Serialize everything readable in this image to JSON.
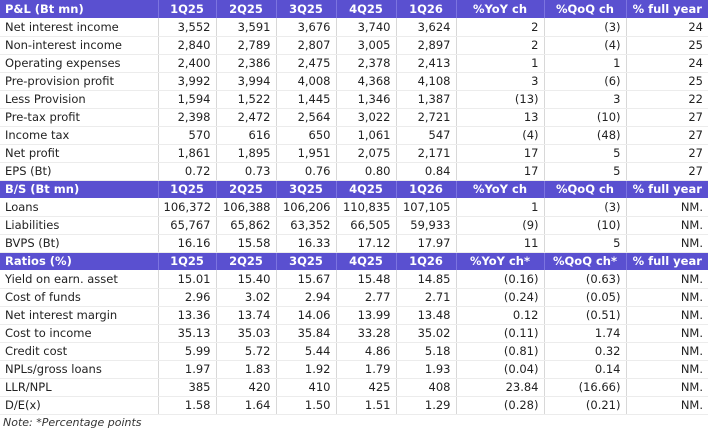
{
  "sections": [
    {
      "header": [
        "P&L (Bt mn)",
        "1Q25",
        "2Q25",
        "3Q25",
        "4Q25",
        "1Q26",
        "%YoY ch",
        "%QoQ ch",
        "% full year"
      ],
      "rows": [
        [
          "Net interest income",
          "3,552",
          "3,591",
          "3,676",
          "3,740",
          "3,624",
          "2",
          "(3)",
          "24"
        ],
        [
          "Non-interest income",
          "2,840",
          "2,789",
          "2,807",
          "3,005",
          "2,897",
          "2",
          "(4)",
          "25"
        ],
        [
          "Operating expenses",
          "2,400",
          "2,386",
          "2,475",
          "2,378",
          "2,413",
          "1",
          "1",
          "24"
        ],
        [
          "Pre-provision profit",
          "3,992",
          "3,994",
          "4,008",
          "4,368",
          "4,108",
          "3",
          "(6)",
          "25"
        ],
        [
          "Less Provision",
          "1,594",
          "1,522",
          "1,445",
          "1,346",
          "1,387",
          "(13)",
          "3",
          "22"
        ],
        [
          "Pre-tax profit",
          "2,398",
          "2,472",
          "2,564",
          "3,022",
          "2,721",
          "13",
          "(10)",
          "27"
        ],
        [
          "Income tax",
          "570",
          "616",
          "650",
          "1,061",
          "547",
          "(4)",
          "(48)",
          "27"
        ],
        [
          "Net profit",
          "1,861",
          "1,895",
          "1,951",
          "2,075",
          "2,171",
          "17",
          "5",
          "27"
        ],
        [
          "EPS (Bt)",
          "0.72",
          "0.73",
          "0.76",
          "0.80",
          "0.84",
          "17",
          "5",
          "27"
        ]
      ]
    },
    {
      "header": [
        "B/S (Bt mn)",
        "1Q25",
        "2Q25",
        "3Q25",
        "4Q25",
        "1Q26",
        "%YoY ch",
        "%QoQ ch",
        "% full year"
      ],
      "rows": [
        [
          "Loans",
          "106,372",
          "106,388",
          "106,206",
          "110,835",
          "107,105",
          "1",
          "(3)",
          "NM."
        ],
        [
          "Liabilities",
          "65,767",
          "65,862",
          "63,352",
          "66,505",
          "59,933",
          "(9)",
          "(10)",
          "NM."
        ],
        [
          "BVPS (Bt)",
          "16.16",
          "15.58",
          "16.33",
          "17.12",
          "17.97",
          "11",
          "5",
          "NM."
        ]
      ]
    },
    {
      "header": [
        "Ratios (%)",
        "1Q25",
        "2Q25",
        "3Q25",
        "4Q25",
        "1Q26",
        "%YoY ch*",
        "%QoQ ch*",
        "% full year"
      ],
      "rows": [
        [
          "Yield on earn. asset",
          "15.01",
          "15.40",
          "15.67",
          "15.48",
          "14.85",
          "(0.16)",
          "(0.63)",
          "NM."
        ],
        [
          "Cost of funds",
          "2.96",
          "3.02",
          "2.94",
          "2.77",
          "2.71",
          "(0.24)",
          "(0.05)",
          "NM."
        ],
        [
          "Net interest margin",
          "13.36",
          "13.74",
          "14.06",
          "13.99",
          "13.48",
          "0.12",
          "(0.51)",
          "NM."
        ],
        [
          "Cost to income",
          "35.13",
          "35.03",
          "35.84",
          "33.28",
          "35.02",
          "(0.11)",
          "1.74",
          "NM."
        ],
        [
          "Credit cost",
          "5.99",
          "5.72",
          "5.44",
          "4.86",
          "5.18",
          "(0.81)",
          "0.32",
          "NM."
        ],
        [
          "NPLs/gross loans",
          "1.97",
          "1.83",
          "1.92",
          "1.79",
          "1.93",
          "(0.04)",
          "0.14",
          "NM."
        ],
        [
          "LLR/NPL",
          "385",
          "420",
          "410",
          "425",
          "408",
          "23.84",
          "(16.66)",
          "NM."
        ],
        [
          "D/E(x)",
          "1.58",
          "1.64",
          "1.50",
          "1.51",
          "1.29",
          "(0.28)",
          "(0.21)",
          "NM."
        ]
      ]
    }
  ],
  "note": "Note: *Percentage points"
}
